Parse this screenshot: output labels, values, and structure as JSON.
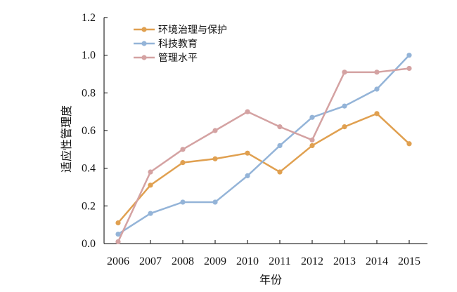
{
  "chart_data": {
    "type": "line",
    "title": "",
    "xlabel": "年份",
    "ylabel": "适应性管理度",
    "categories": [
      "2006",
      "2007",
      "2008",
      "2009",
      "2010",
      "2011",
      "2012",
      "2013",
      "2014",
      "2015"
    ],
    "ylim": [
      0,
      1.2
    ],
    "yticks": [
      "0.0",
      "0.2",
      "0.4",
      "0.6",
      "0.8",
      "1.0",
      "1.2"
    ],
    "grid": false,
    "legend_position": "top-left",
    "series": [
      {
        "name": "环境治理与保护",
        "color": "#E0A050",
        "values": [
          0.11,
          0.31,
          0.43,
          0.45,
          0.48,
          0.38,
          0.52,
          0.62,
          0.69,
          0.53
        ]
      },
      {
        "name": "科技教育",
        "color": "#94B4D8",
        "values": [
          0.05,
          0.16,
          0.22,
          0.22,
          0.36,
          0.52,
          0.67,
          0.73,
          0.82,
          1.0
        ]
      },
      {
        "name": "管理水平",
        "color": "#D4A2A2",
        "values": [
          0.01,
          0.38,
          0.5,
          0.6,
          0.7,
          0.62,
          0.55,
          0.91,
          0.91,
          0.93
        ]
      }
    ]
  }
}
